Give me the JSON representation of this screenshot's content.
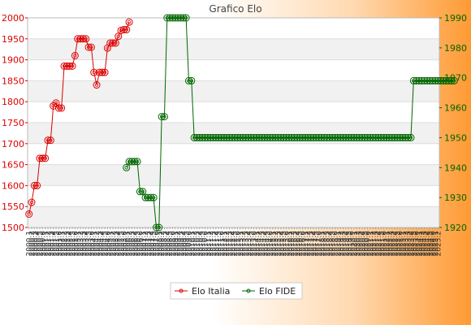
{
  "chart_data": {
    "type": "line",
    "title": "Grafico Elo",
    "xlabel": "",
    "ylabel": "",
    "y_left": {
      "lim": [
        1500,
        2000
      ],
      "ticks": [
        1500,
        1550,
        1600,
        1650,
        1700,
        1750,
        1800,
        1850,
        1900,
        1950,
        2000
      ],
      "color": "#dd0000"
    },
    "y_right": {
      "lim": [
        1920,
        1990
      ],
      "ticks": [
        1920,
        1930,
        1940,
        1950,
        1960,
        1970,
        1980,
        1990
      ],
      "color": "#006600"
    },
    "grid": "horizontal",
    "legend_position": "bottom-center",
    "x_tick_labels": [
      "2000.1",
      "2000.2",
      "2000.3",
      "2000.4",
      "2000.5",
      "2000.6",
      "2001.1",
      "2001.2",
      "2001.3",
      "2001.4",
      "2001.5",
      "2001.6",
      "2002.1",
      "2002.2",
      "2002.3",
      "2002.4",
      "2002.5",
      "2002.6",
      "2003.1",
      "2003.2",
      "2003.3",
      "2003.4",
      "2003.5",
      "2003.6",
      "2004.1",
      "2004.2",
      "2004.3",
      "2004.4",
      "2004.5",
      "2004.6",
      "2005.1",
      "2005.2",
      "2005.3",
      "2005.4",
      "2005.5",
      "2005.6",
      "2006.1",
      "2006.2",
      "2006.3",
      "2006.4",
      "2006.5",
      "2006.6",
      "2007.1",
      "2007.2",
      "2007.3",
      "2007.4",
      "2007.5",
      "2007.6",
      "2008.1",
      "2008.2",
      "2008.3",
      "2008.4",
      "2008.5",
      "2008.6",
      "2009.1",
      "2009.2",
      "2009.3",
      "2009.4",
      "2009.5",
      "2009.6",
      "2010.1",
      "2010.2",
      "2010.3",
      "2010.4",
      "2010.5",
      "2010.6",
      "2011.1",
      "2011.2",
      "2011.3",
      "2011.4",
      "2011.5",
      "2011.6",
      "2012.1",
      "2012.2",
      "2012.3",
      "2012.4",
      "2012.5",
      "2012.6",
      "2013.1",
      "2013.2",
      "2013.3",
      "2013.4",
      "2013.5",
      "2013.6",
      "2014.1",
      "2014.2",
      "2014.3",
      "2014.4",
      "2014.5",
      "2014.6",
      "2015.1",
      "2015.2",
      "2015.3",
      "2015.4",
      "2015.5",
      "2015.6",
      "2016.1",
      "2016.2",
      "2016.3",
      "2016.4",
      "2016.5",
      "2016.6",
      "2017.1",
      "2017.2",
      "2017.3",
      "2017.4",
      "2017.5",
      "2017.6",
      "2018.1",
      "2018.2",
      "2018.3",
      "2018.4",
      "2018.5",
      "2018.6",
      "2019.1",
      "2019.2",
      "2019.3",
      "2019.4",
      "2019.5",
      "2019.6",
      "2020.1",
      "2020.2",
      "2020.3",
      "2020.4",
      "2020.5",
      "2020.6",
      "2021.1",
      "2021.2",
      "2021.3",
      "2021.4",
      "2021.5",
      "2021.6",
      "2022.1",
      "2022.2",
      "2022.3",
      "2022.4",
      "2022.5",
      "2022.6",
      "2023.1",
      "2023.2",
      "2023.3",
      "2023.4",
      "2023.5",
      "2023.6",
      "2024.1",
      "2024.2",
      "2024.3",
      "2024.4",
      "2024.5",
      "2024.6",
      "2025.1",
      "2025.2"
    ],
    "series": [
      {
        "name": "Elo Italia",
        "axis": "left",
        "color": "#dd0000",
        "values": [
          1532,
          1560,
          1600,
          1600,
          1665,
          1665,
          1665,
          1708,
          1708,
          1790,
          1797,
          1785,
          1785,
          1885,
          1885,
          1885,
          1885,
          1910,
          1950,
          1950,
          1950,
          1950,
          1930,
          1930,
          1870,
          1840,
          1870,
          1870,
          1870,
          1928,
          1940,
          1940,
          1940,
          1956,
          1970,
          1972,
          1972,
          1990
        ]
      },
      {
        "name": "Elo FIDE",
        "axis": "right",
        "color": "#006600",
        "start_index": 36,
        "values": [
          1940,
          1942,
          1942,
          1942,
          1942,
          1932,
          1932,
          1930,
          1930,
          1930,
          1930,
          1920,
          1920,
          1957,
          1957,
          1990,
          1990,
          1990,
          1990,
          1990,
          1990,
          1990,
          1990,
          1969,
          1969,
          1950,
          1950,
          1950,
          1950,
          1950,
          1950,
          1950,
          1950,
          1950,
          1950,
          1950,
          1950,
          1950,
          1950,
          1950,
          1950,
          1950,
          1950,
          1950,
          1950,
          1950,
          1950,
          1950,
          1950,
          1950,
          1950,
          1950,
          1950,
          1950,
          1950,
          1950,
          1950,
          1950,
          1950,
          1950,
          1950,
          1950,
          1950,
          1950,
          1950,
          1950,
          1950,
          1950,
          1950,
          1950,
          1950,
          1950,
          1950,
          1950,
          1950,
          1950,
          1950,
          1950,
          1950,
          1950,
          1950,
          1950,
          1950,
          1950,
          1950,
          1950,
          1950,
          1950,
          1950,
          1950,
          1950,
          1950,
          1950,
          1950,
          1950,
          1950,
          1950,
          1950,
          1950,
          1950,
          1950,
          1950,
          1950,
          1950,
          1950,
          1950,
          1969,
          1969,
          1969,
          1969,
          1969,
          1969,
          1969,
          1969,
          1969,
          1969,
          1969,
          1969,
          1969,
          1969,
          1969,
          1969
        ]
      }
    ]
  }
}
